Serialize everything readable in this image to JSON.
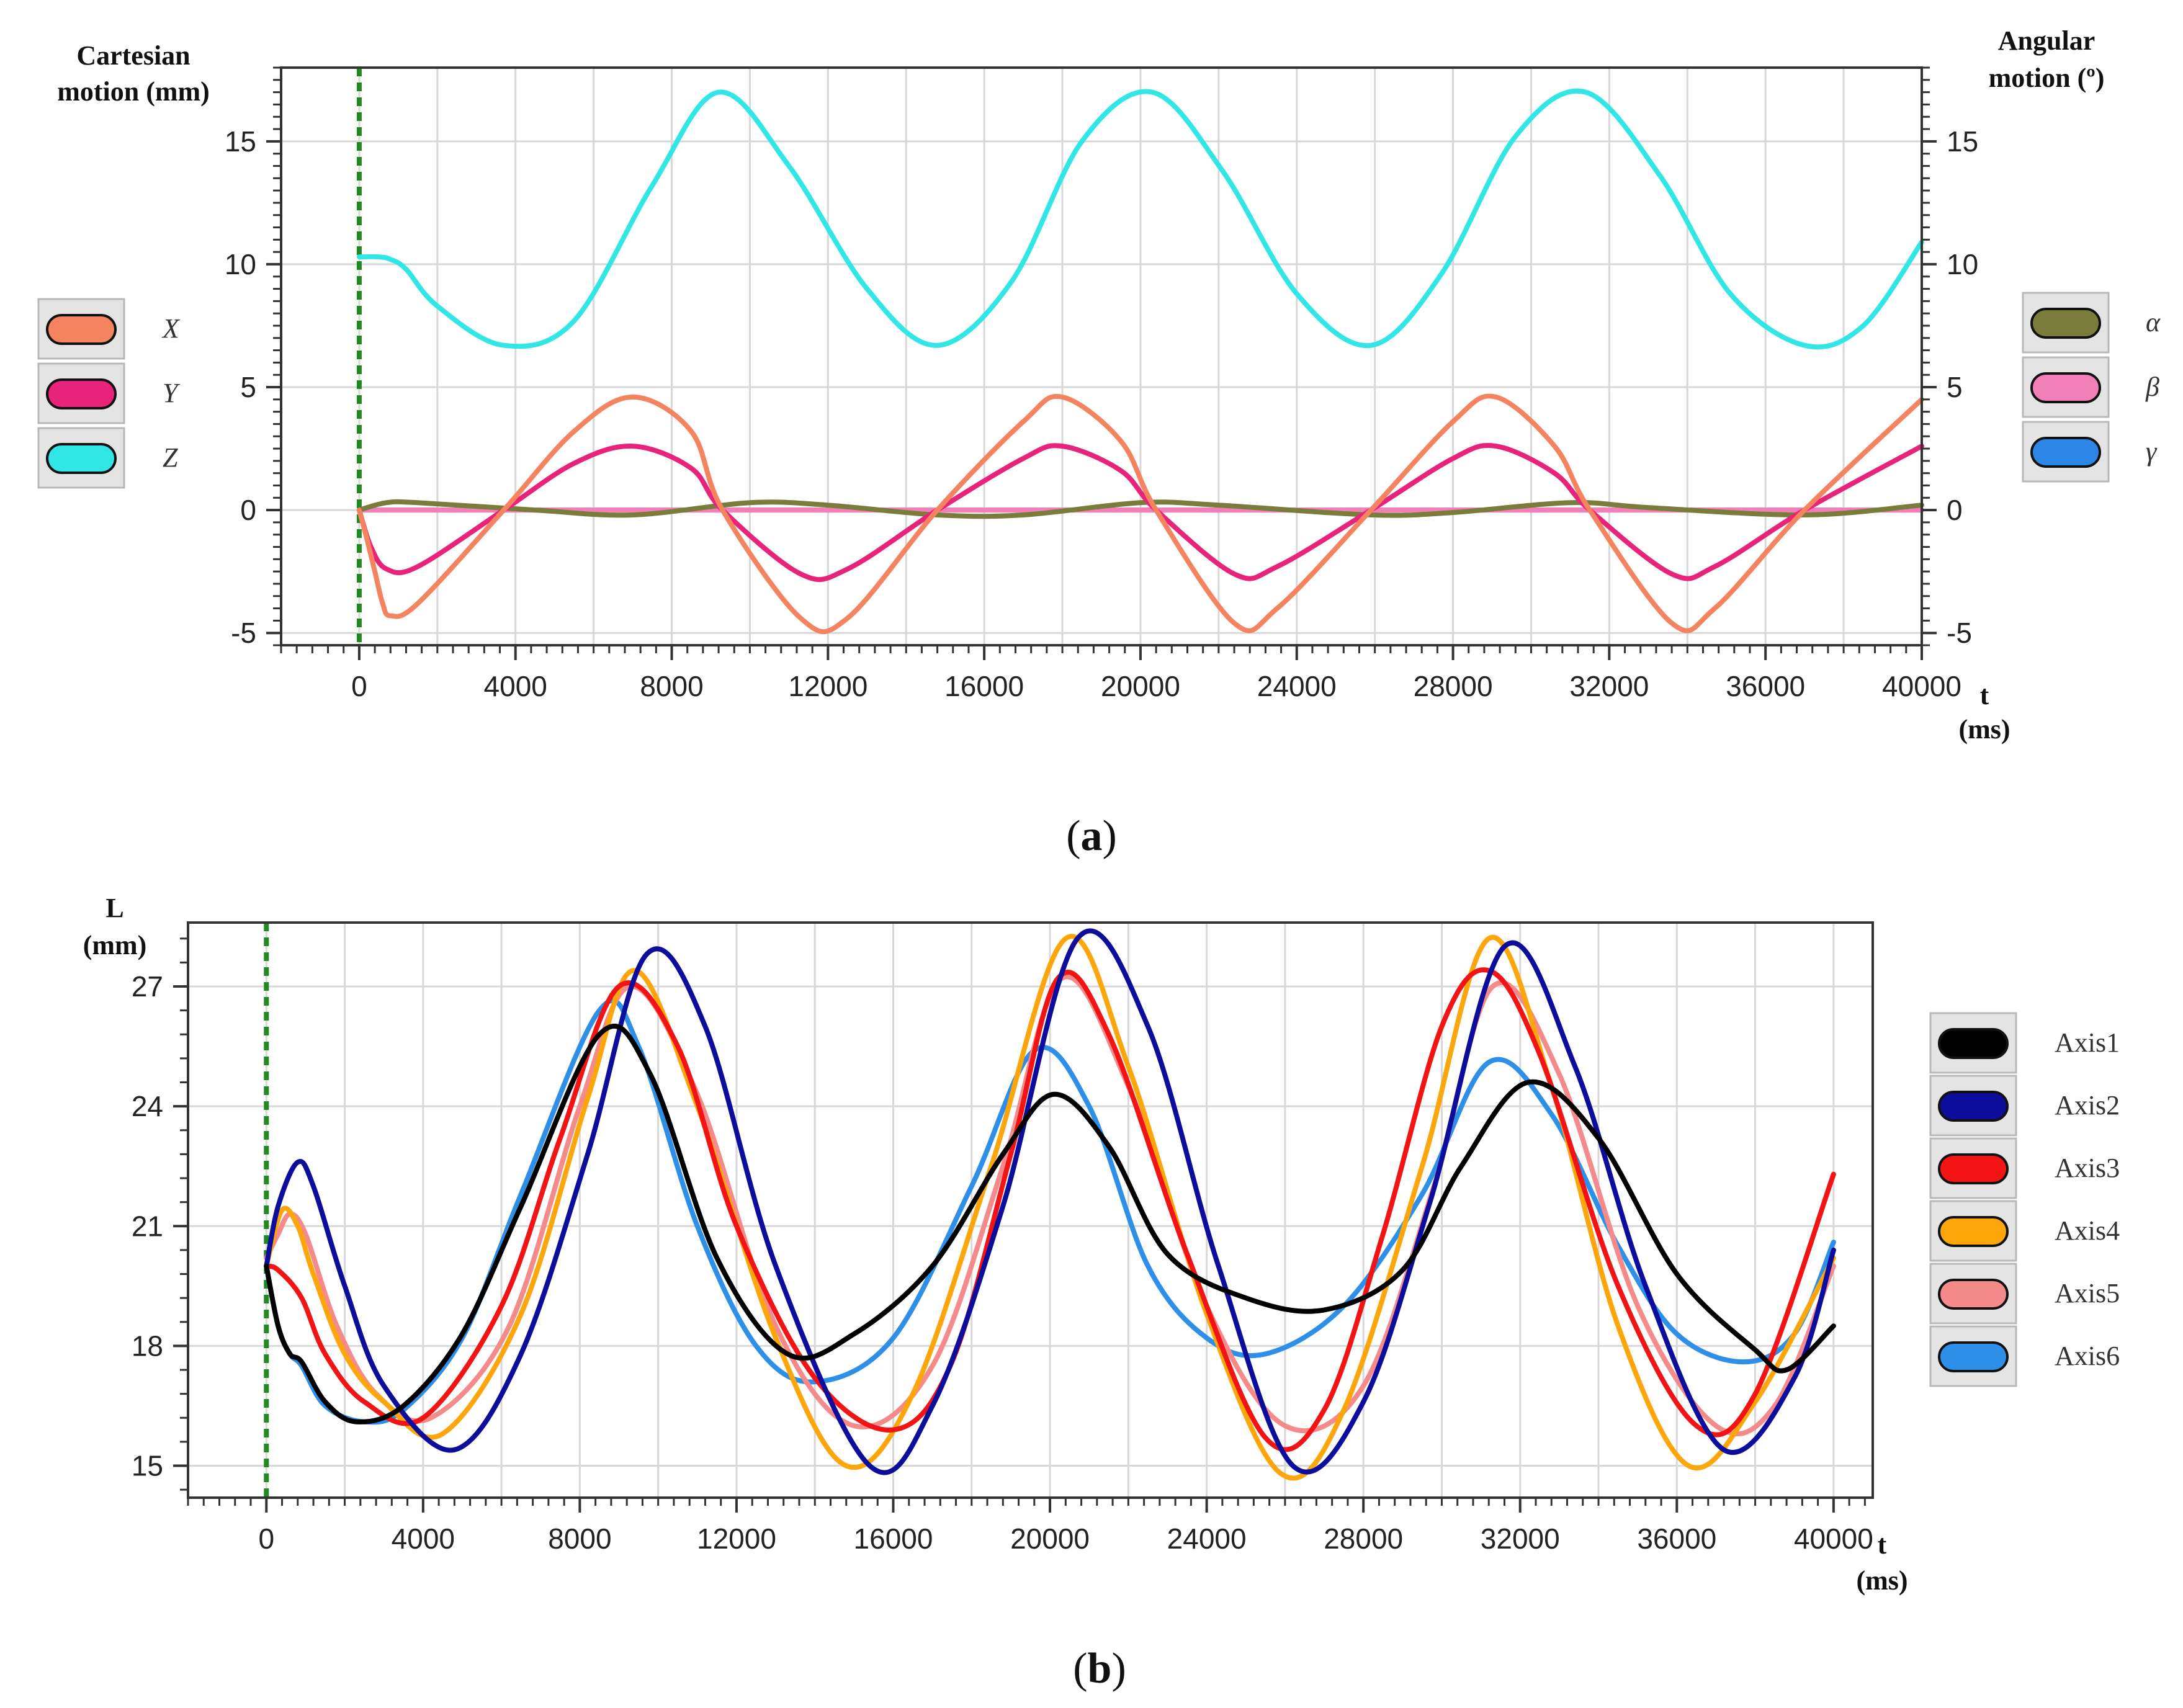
{
  "chart_data": [
    {
      "panel": "a",
      "type": "line",
      "ylabel_left": [
        "Cartesian",
        "motion (mm)"
      ],
      "ylabel_right": [
        "Angular",
        "motion (º)"
      ],
      "xlabel": [
        "t",
        "(ms)"
      ],
      "xlim": [
        -2000,
        40000
      ],
      "ylim": [
        -5.5,
        18
      ],
      "xticks": [
        0,
        4000,
        8000,
        12000,
        16000,
        20000,
        24000,
        28000,
        32000,
        36000,
        40000
      ],
      "xtick_labels": [
        "0",
        "4000",
        "8000",
        "12000",
        "16000",
        "20000",
        "24000",
        "28000",
        "32000",
        "36000",
        "40000"
      ],
      "yticks": [
        -5,
        0,
        5,
        10,
        15
      ],
      "ytick_labels": [
        "-5",
        "0",
        "5",
        "10",
        "15"
      ],
      "start_marker_t": 0,
      "legend_left": [
        "X",
        "Y",
        "Z"
      ],
      "legend_right": [
        "α",
        "β",
        "γ"
      ],
      "series": [
        {
          "name": "X",
          "color": "#f4845f",
          "x": [
            0,
            200,
            400,
            600,
            800,
            1500,
            3700,
            5500,
            7000,
            8500,
            9300,
            11300,
            12500,
            14800,
            17000,
            18000,
            19500,
            20400,
            22400,
            23500,
            25900,
            28000,
            29100,
            30600,
            31500,
            33600,
            34700,
            37000,
            40000
          ],
          "y": [
            0,
            -1.2,
            -2.5,
            -3.8,
            -4.3,
            -3.8,
            0,
            3.2,
            4.6,
            3.2,
            0,
            -4.4,
            -4.4,
            0,
            3.6,
            4.6,
            2.8,
            0,
            -4.6,
            -4.0,
            0,
            3.6,
            4.6,
            2.6,
            0,
            -4.6,
            -4.0,
            0,
            4.5
          ]
        },
        {
          "name": "Y",
          "color": "#e8237a",
          "x": [
            0,
            300,
            700,
            1500,
            3700,
            5500,
            7000,
            8500,
            9300,
            11300,
            12500,
            14800,
            17000,
            18000,
            19500,
            20400,
            22400,
            23500,
            25900,
            28000,
            29100,
            30600,
            31500,
            33600,
            34700,
            37000,
            40000
          ],
          "y": [
            0,
            -1.5,
            -2.4,
            -2.3,
            0,
            1.9,
            2.6,
            1.7,
            0,
            -2.6,
            -2.4,
            0,
            2.1,
            2.6,
            1.6,
            0,
            -2.6,
            -2.3,
            0,
            2.1,
            2.6,
            1.5,
            0,
            -2.6,
            -2.3,
            0,
            2.6
          ]
        },
        {
          "name": "Z",
          "color": "#33e6e6",
          "x": [
            0,
            500,
            800,
            1200,
            2000,
            3700,
            5500,
            7500,
            9200,
            11000,
            13000,
            14800,
            16700,
            18500,
            20300,
            22100,
            24000,
            25900,
            27700,
            29600,
            31400,
            33300,
            35100,
            37000,
            38500,
            40000
          ],
          "y": [
            10.3,
            10.3,
            10.2,
            9.8,
            8.3,
            6.7,
            7.7,
            13.2,
            17.0,
            14.0,
            9.0,
            6.7,
            9.3,
            15.0,
            17.0,
            13.8,
            8.8,
            6.7,
            9.6,
            15.2,
            17.0,
            13.6,
            8.8,
            6.7,
            7.5,
            10.9
          ]
        },
        {
          "name": "α",
          "color": "#7a7c3c",
          "x": [
            0,
            700,
            1500,
            4500,
            7000,
            10000,
            12000,
            14800,
            17000,
            20000,
            22000,
            25900,
            28000,
            31000,
            33000,
            37000,
            40000
          ],
          "y": [
            0,
            0.3,
            0.3,
            0,
            -0.2,
            0.3,
            0.2,
            -0.2,
            -0.2,
            0.3,
            0.2,
            -0.2,
            -0.1,
            0.3,
            0.1,
            -0.2,
            0.2
          ]
        },
        {
          "name": "β",
          "color": "#f27fb8",
          "x": [
            0,
            40000
          ],
          "y": [
            0,
            0
          ]
        },
        {
          "name": "γ",
          "color": "#2c86e6",
          "x": [
            0,
            40000
          ],
          "y": [
            0,
            0
          ]
        }
      ]
    },
    {
      "panel": "b",
      "type": "line",
      "ylabel": [
        "L",
        "(mm)"
      ],
      "xlabel": [
        "t",
        "(ms)"
      ],
      "xlim": [
        -2000,
        41000
      ],
      "ylim": [
        14.2,
        28.6
      ],
      "xticks": [
        0,
        4000,
        8000,
        12000,
        16000,
        20000,
        24000,
        28000,
        32000,
        36000,
        40000
      ],
      "xtick_labels": [
        "0",
        "4000",
        "8000",
        "12000",
        "16000",
        "20000",
        "24000",
        "28000",
        "32000",
        "36000",
        "40000"
      ],
      "yticks": [
        15,
        18,
        21,
        24,
        27
      ],
      "ytick_labels": [
        "15",
        "18",
        "21",
        "24",
        "27"
      ],
      "start_marker_t": 0,
      "legend": [
        "Axis1",
        "Axis2",
        "Axis3",
        "Axis4",
        "Axis5",
        "Axis6"
      ],
      "series": [
        {
          "name": "Axis1",
          "color": "#000000",
          "x": [
            0,
            300,
            600,
            900,
            1500,
            2300,
            3500,
            5000,
            6500,
            8500,
            9800,
            11500,
            13300,
            15000,
            17000,
            18800,
            20100,
            21500,
            23000,
            25000,
            27000,
            29000,
            30500,
            32200,
            34000,
            36000,
            38000,
            38800,
            40000
          ],
          "y": [
            20.0,
            18.5,
            17.8,
            17.6,
            16.6,
            16.1,
            16.5,
            18.3,
            21.5,
            25.8,
            24.8,
            20.2,
            17.8,
            18.3,
            20.0,
            22.8,
            24.3,
            23.0,
            20.3,
            19.2,
            18.9,
            19.9,
            22.5,
            24.6,
            23.2,
            19.8,
            17.9,
            17.4,
            18.5
          ]
        },
        {
          "name": "Axis2",
          "color": "#0d0d9c",
          "x": [
            0,
            300,
            800,
            1200,
            2000,
            3000,
            4800,
            6500,
            8200,
            9700,
            11200,
            13000,
            15400,
            17000,
            18800,
            20700,
            22500,
            24300,
            26200,
            28000,
            29700,
            31600,
            33400,
            35200,
            37200,
            39000,
            40000
          ],
          "y": [
            20.0,
            21.5,
            22.6,
            22.0,
            19.5,
            17.0,
            15.4,
            17.8,
            22.8,
            27.8,
            26.0,
            20.0,
            15.0,
            16.5,
            21.5,
            28.2,
            26.0,
            20.0,
            15.0,
            16.6,
            21.6,
            28.0,
            25.0,
            19.5,
            15.4,
            17.2,
            20.4
          ]
        },
        {
          "name": "Axis3",
          "color": "#f21414",
          "x": [
            0,
            300,
            900,
            1500,
            2500,
            4000,
            6000,
            7500,
            9000,
            10500,
            12000,
            14000,
            16000,
            17500,
            19000,
            20200,
            21500,
            23500,
            25500,
            27000,
            28500,
            30000,
            31200,
            32500,
            34500,
            36500,
            38000,
            40000
          ],
          "y": [
            20.0,
            19.9,
            19.2,
            17.8,
            16.6,
            16.2,
            19.0,
            23.2,
            27.0,
            25.5,
            21.0,
            17.2,
            15.9,
            17.6,
            22.8,
            27.2,
            25.8,
            20.3,
            15.7,
            16.4,
            20.8,
            26.0,
            27.4,
            25.3,
            19.5,
            16.0,
            16.8,
            22.3
          ]
        },
        {
          "name": "Axis4",
          "color": "#fca60c",
          "x": [
            0,
            400,
            800,
            1200,
            2000,
            3000,
            4500,
            6500,
            8200,
            9400,
            11000,
            13000,
            14800,
            16500,
            18500,
            20400,
            22000,
            24000,
            25900,
            27500,
            29500,
            31200,
            32800,
            34500,
            36300,
            38000,
            40000
          ],
          "y": [
            20.0,
            21.4,
            21.0,
            19.8,
            17.8,
            16.6,
            15.8,
            18.8,
            24.2,
            27.4,
            24.0,
            18.2,
            15.0,
            16.8,
            22.5,
            28.2,
            25.0,
            18.8,
            14.8,
            16.4,
            22.5,
            28.2,
            24.5,
            18.5,
            15.0,
            16.6,
            20.2
          ]
        },
        {
          "name": "Axis5",
          "color": "#f58a8a",
          "x": [
            0,
            300,
            600,
            1000,
            1800,
            2800,
            4200,
            6200,
            8000,
            9300,
            11000,
            13000,
            15000,
            17000,
            18800,
            20300,
            22000,
            24000,
            26000,
            28000,
            29800,
            31300,
            33000,
            35000,
            37000,
            38500,
            40000
          ],
          "y": [
            20.2,
            20.8,
            21.3,
            20.8,
            18.5,
            16.8,
            16.2,
            18.5,
            24.0,
            27.0,
            24.3,
            18.5,
            16.0,
            17.5,
            22.5,
            27.2,
            24.5,
            19.0,
            16.0,
            17.0,
            22.0,
            27.0,
            24.8,
            19.0,
            16.0,
            16.5,
            20.0
          ]
        },
        {
          "name": "Axis6",
          "color": "#2e8fe8",
          "x": [
            0,
            300,
            600,
            900,
            1500,
            2500,
            3500,
            5000,
            6500,
            8500,
            9500,
            11000,
            12500,
            14000,
            16000,
            18000,
            19600,
            21000,
            22500,
            24000,
            25500,
            27500,
            29500,
            31200,
            32800,
            34500,
            36000,
            37700,
            39000,
            40000
          ],
          "y": [
            20.0,
            18.5,
            17.8,
            17.5,
            16.5,
            16.1,
            16.4,
            18.2,
            21.8,
            26.4,
            25.5,
            21.0,
            18.0,
            17.1,
            18.2,
            22.0,
            25.4,
            24.0,
            20.0,
            18.2,
            17.8,
            19.0,
            21.8,
            25.1,
            23.8,
            20.5,
            18.3,
            17.6,
            18.3,
            20.6
          ]
        }
      ]
    }
  ],
  "captions": {
    "a": "(a)",
    "b": "(b)"
  }
}
